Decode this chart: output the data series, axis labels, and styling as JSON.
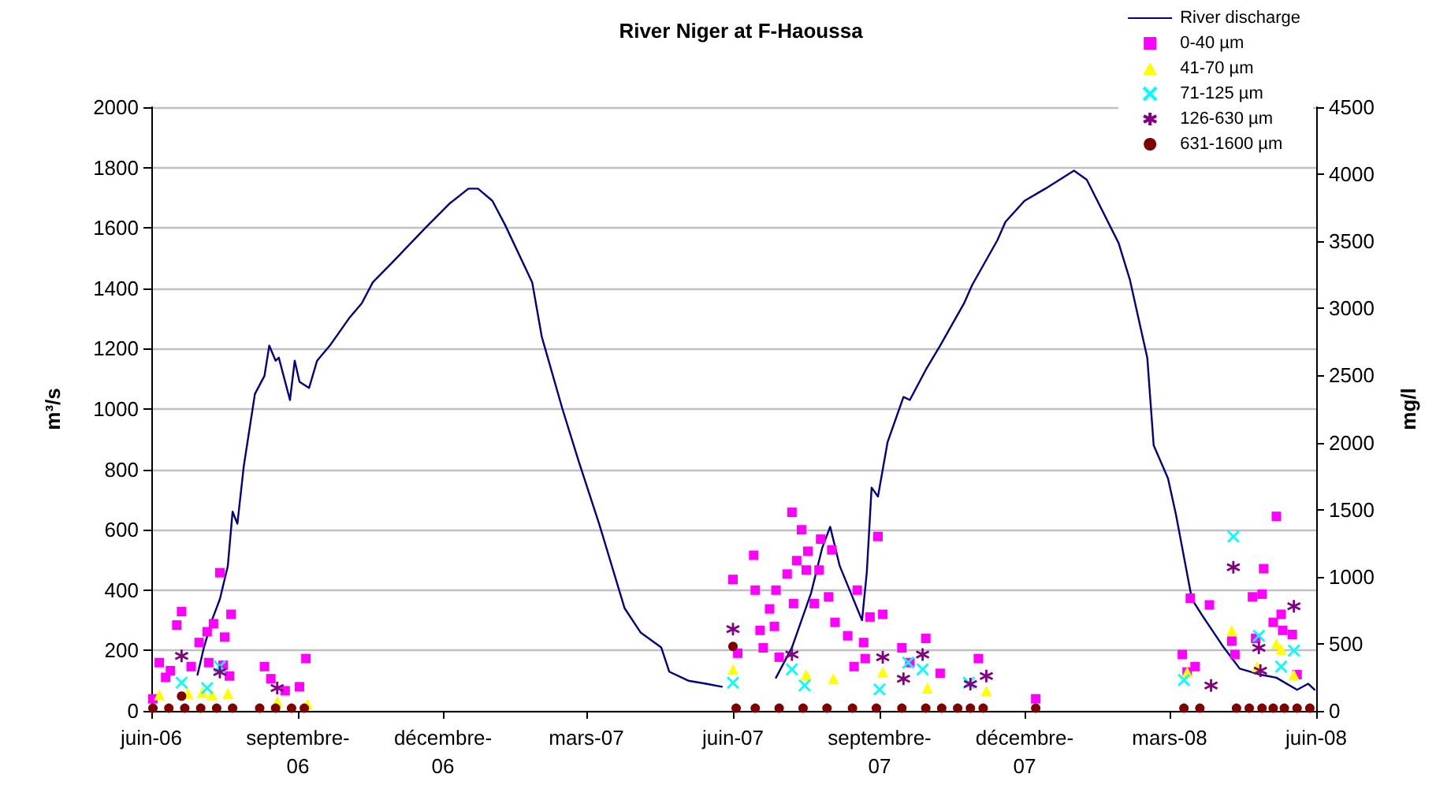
{
  "chart_data": {
    "type": "line",
    "title": "River Niger at F-Haoussa",
    "ylabel": "m³/s",
    "y2label": "mg/l",
    "xlim": [
      "2006-06-01",
      "2008-06-01"
    ],
    "xticks": [
      {
        "value": "2006-06-01",
        "label": "juin-06"
      },
      {
        "value": "2006-09-01",
        "label": "septembre-06"
      },
      {
        "value": "2006-12-01",
        "label": "décembre-06"
      },
      {
        "value": "2007-03-01",
        "label": "mars-07"
      },
      {
        "value": "2007-06-01",
        "label": "juin-07"
      },
      {
        "value": "2007-09-01",
        "label": "septembre-07"
      },
      {
        "value": "2007-12-01",
        "label": "décembre-07"
      },
      {
        "value": "2008-03-01",
        "label": "mars-08"
      },
      {
        "value": "2008-06-01",
        "label": "juin-08"
      }
    ],
    "ylim": [
      0,
      2000
    ],
    "yticks": [
      0,
      200,
      400,
      600,
      800,
      1000,
      1200,
      1400,
      1600,
      1800,
      2000
    ],
    "y2lim": [
      0,
      4500
    ],
    "y2ticks": [
      0,
      500,
      1000,
      1500,
      2000,
      2500,
      3000,
      3500,
      4000,
      4500
    ],
    "grid": "y",
    "legend": "top right",
    "series": [
      {
        "name": "River discharge",
        "color": "#000080",
        "marker": "none",
        "line_style": "solid",
        "x": [
          "2006-06-30",
          "2006-07-04",
          "2006-07-09",
          "2006-07-14",
          "2006-07-19",
          "2006-07-22",
          "2006-07-25",
          "2006-07-29",
          "2006-08-05",
          "2006-08-11",
          "2006-08-14",
          "2006-08-18",
          "2006-08-20",
          "2006-08-27",
          "2006-08-30",
          "2006-09-02",
          "2006-09-08",
          "2006-09-13",
          "2006-09-21",
          "2006-10-03",
          "2006-10-11",
          "2006-10-18",
          "2006-10-31",
          "2006-11-20",
          "2006-12-05",
          "2006-12-17",
          "2006-12-23",
          "2007-01-01",
          "2007-01-09",
          "2007-01-26",
          "2007-02-01",
          "2007-02-14",
          "2007-02-24",
          "2007-03-09",
          "2007-03-25",
          "2007-04-04",
          "2007-04-17",
          "2007-04-22",
          "2007-05-04",
          "2007-05-15",
          "2007-05-25",
          "2007-06-10",
          "2007-06-28",
          "2007-07-08",
          "2007-07-20",
          "2007-07-27",
          "2007-08-01",
          "2007-08-07",
          "2007-08-14",
          "2007-08-21",
          "2007-08-24",
          "2007-08-27",
          "2007-08-31",
          "2007-09-06",
          "2007-09-16",
          "2007-09-20",
          "2007-09-30",
          "2007-10-09",
          "2007-10-24",
          "2007-10-29",
          "2007-11-14",
          "2007-11-19",
          "2007-12-01",
          "2007-12-14",
          "2008-01-01",
          "2008-01-09",
          "2008-01-29",
          "2008-02-05",
          "2008-02-16",
          "2008-02-20",
          "2008-02-29",
          "2008-03-05",
          "2008-03-15",
          "2008-03-21",
          "2008-04-04",
          "2008-04-14",
          "2008-04-27",
          "2008-05-07",
          "2008-05-20",
          "2008-05-27",
          "2008-05-31"
        ],
        "values": [
          120,
          210,
          300,
          370,
          480,
          660,
          620,
          810,
          1050,
          1110,
          1210,
          1160,
          1170,
          1030,
          1160,
          1090,
          1070,
          1160,
          1210,
          1300,
          1350,
          1420,
          1490,
          1600,
          1680,
          1730,
          1730,
          1690,
          1610,
          1420,
          1240,
          1000,
          830,
          620,
          340,
          260,
          210,
          130,
          100,
          90,
          80,
          null,
          110,
          210,
          390,
          540,
          610,
          480,
          390,
          300,
          460,
          740,
          710,
          890,
          1040,
          1030,
          1130,
          1210,
          1350,
          1410,
          1560,
          1620,
          1690,
          1730,
          1790,
          1760,
          1550,
          1430,
          1170,
          880,
          770,
          650,
          370,
          320,
          210,
          140,
          120,
          110,
          70,
          90,
          70
        ]
      },
      {
        "name": "0-40 µm",
        "type": "scatter",
        "axis": "y2",
        "color": "#ff00ff",
        "marker": "square",
        "x": [
          "2006-06-02",
          "2006-06-06",
          "2006-06-10",
          "2006-06-13",
          "2006-06-17",
          "2006-06-20",
          "2006-06-26",
          "2006-07-01",
          "2006-07-06",
          "2006-07-07",
          "2006-07-10",
          "2006-07-14",
          "2006-07-16",
          "2006-07-17",
          "2006-07-20",
          "2006-07-21",
          "2006-08-11",
          "2006-08-15",
          "2006-08-24",
          "2006-09-02",
          "2006-09-06",
          "2007-06-01",
          "2007-06-04",
          "2007-06-14",
          "2007-06-15",
          "2007-06-18",
          "2007-06-20",
          "2007-06-24",
          "2007-06-27",
          "2007-06-28",
          "2007-06-30",
          "2007-07-05",
          "2007-07-08",
          "2007-07-09",
          "2007-07-11",
          "2007-07-14",
          "2007-07-17",
          "2007-07-18",
          "2007-07-22",
          "2007-07-25",
          "2007-07-26",
          "2007-07-31",
          "2007-08-02",
          "2007-08-04",
          "2007-08-12",
          "2007-08-16",
          "2007-08-18",
          "2007-08-22",
          "2007-08-23",
          "2007-08-26",
          "2007-08-31",
          "2007-09-03",
          "2007-09-15",
          "2007-09-20",
          "2007-09-30",
          "2007-10-09",
          "2007-11-02",
          "2007-12-08",
          "2008-03-12",
          "2008-03-09",
          "2008-03-14",
          "2008-03-17",
          "2008-03-26",
          "2008-04-09",
          "2008-04-11",
          "2008-04-22",
          "2008-04-24",
          "2008-04-28",
          "2008-04-29",
          "2008-05-05",
          "2008-05-07",
          "2008-05-10",
          "2008-05-11",
          "2008-05-17",
          "2008-05-20"
        ],
        "values": [
          90,
          360,
          250,
          300,
          640,
          740,
          330,
          510,
          590,
          360,
          650,
          1030,
          340,
          550,
          260,
          720,
          330,
          240,
          150,
          180,
          390,
          980,
          430,
          1160,
          900,
          600,
          470,
          760,
          630,
          900,
          400,
          1020,
          1480,
          800,
          1120,
          1350,
          1050,
          1190,
          800,
          1050,
          1280,
          850,
          1200,
          660,
          560,
          330,
          900,
          510,
          390,
          700,
          1300,
          720,
          470,
          360,
          540,
          280,
          390,
          90,
          290,
          420,
          840,
          330,
          790,
          520,
          420,
          850,
          540,
          870,
          1060,
          660,
          1450,
          720,
          600,
          570,
          270
        ]
      },
      {
        "name": "41-70 µm",
        "type": "scatter",
        "axis": "y2",
        "color": "#ffff00",
        "marker": "triangle",
        "x": [
          "2006-06-06",
          "2006-06-24",
          "2006-07-03",
          "2006-07-09",
          "2006-07-19",
          "2006-08-19",
          "2006-09-07",
          "2007-06-01",
          "2007-07-17",
          "2007-08-03",
          "2007-09-03",
          "2007-10-01",
          "2007-11-07",
          "2008-03-12",
          "2008-04-09",
          "2008-04-25",
          "2008-05-07",
          "2008-05-10",
          "2008-05-18"
        ],
        "values": [
          120,
          130,
          140,
          120,
          130,
          70,
          50,
          310,
          270,
          240,
          290,
          170,
          150,
          290,
          600,
          330,
          500,
          460,
          270
        ]
      },
      {
        "name": "71-125 µm",
        "type": "scatter",
        "axis": "y2",
        "color": "#00ffff",
        "marker": "cross",
        "x": [
          "2006-06-20",
          "2006-07-06",
          "2006-07-14",
          "2007-06-01",
          "2007-07-08",
          "2007-07-16",
          "2007-09-01",
          "2007-09-19",
          "2007-09-28",
          "2007-10-27",
          "2008-03-10",
          "2008-04-10",
          "2008-04-26",
          "2008-05-10",
          "2008-05-18"
        ],
        "values": [
          210,
          170,
          330,
          210,
          310,
          190,
          160,
          360,
          310,
          210,
          230,
          1300,
          560,
          330,
          450
        ]
      },
      {
        "name": "126-630 µm",
        "type": "scatter",
        "axis": "y2",
        "color": "#800080",
        "x": [
          "2006-06-20",
          "2006-07-14",
          "2006-08-19",
          "2007-06-01",
          "2007-07-08",
          "2007-09-03",
          "2007-09-16",
          "2007-09-28",
          "2007-10-28",
          "2007-11-07",
          "2008-03-27",
          "2008-04-10",
          "2008-04-26",
          "2008-04-27",
          "2008-05-18"
        ],
        "values": [
          410,
          290,
          170,
          610,
          420,
          400,
          240,
          420,
          200,
          260,
          190,
          1070,
          470,
          300,
          780
        ]
      },
      {
        "name": "631-1600 µm",
        "type": "scatter",
        "axis": "y2",
        "color": "#800000",
        "marker": "circle",
        "x": [
          "2006-06-02",
          "2006-06-12",
          "2006-06-20",
          "2006-06-22",
          "2006-07-02",
          "2006-07-12",
          "2006-07-22",
          "2006-08-08",
          "2006-08-18",
          "2006-08-28",
          "2006-09-05",
          "2007-06-01",
          "2007-06-03",
          "2007-06-15",
          "2007-06-30",
          "2007-07-15",
          "2007-07-30",
          "2007-08-15",
          "2007-08-30",
          "2007-09-15",
          "2007-09-30",
          "2007-10-10",
          "2007-10-20",
          "2007-10-28",
          "2007-11-05",
          "2007-12-08",
          "2008-03-10",
          "2008-03-20",
          "2008-04-12",
          "2008-04-20",
          "2008-04-28",
          "2008-05-05",
          "2008-05-12",
          "2008-05-20",
          "2008-05-28"
        ],
        "values": [
          20,
          20,
          110,
          20,
          20,
          20,
          20,
          20,
          20,
          20,
          20,
          480,
          20,
          20,
          20,
          20,
          20,
          20,
          20,
          20,
          20,
          20,
          20,
          20,
          20,
          20,
          20,
          20,
          20,
          20,
          20,
          20,
          20,
          20,
          20
        ]
      }
    ]
  }
}
